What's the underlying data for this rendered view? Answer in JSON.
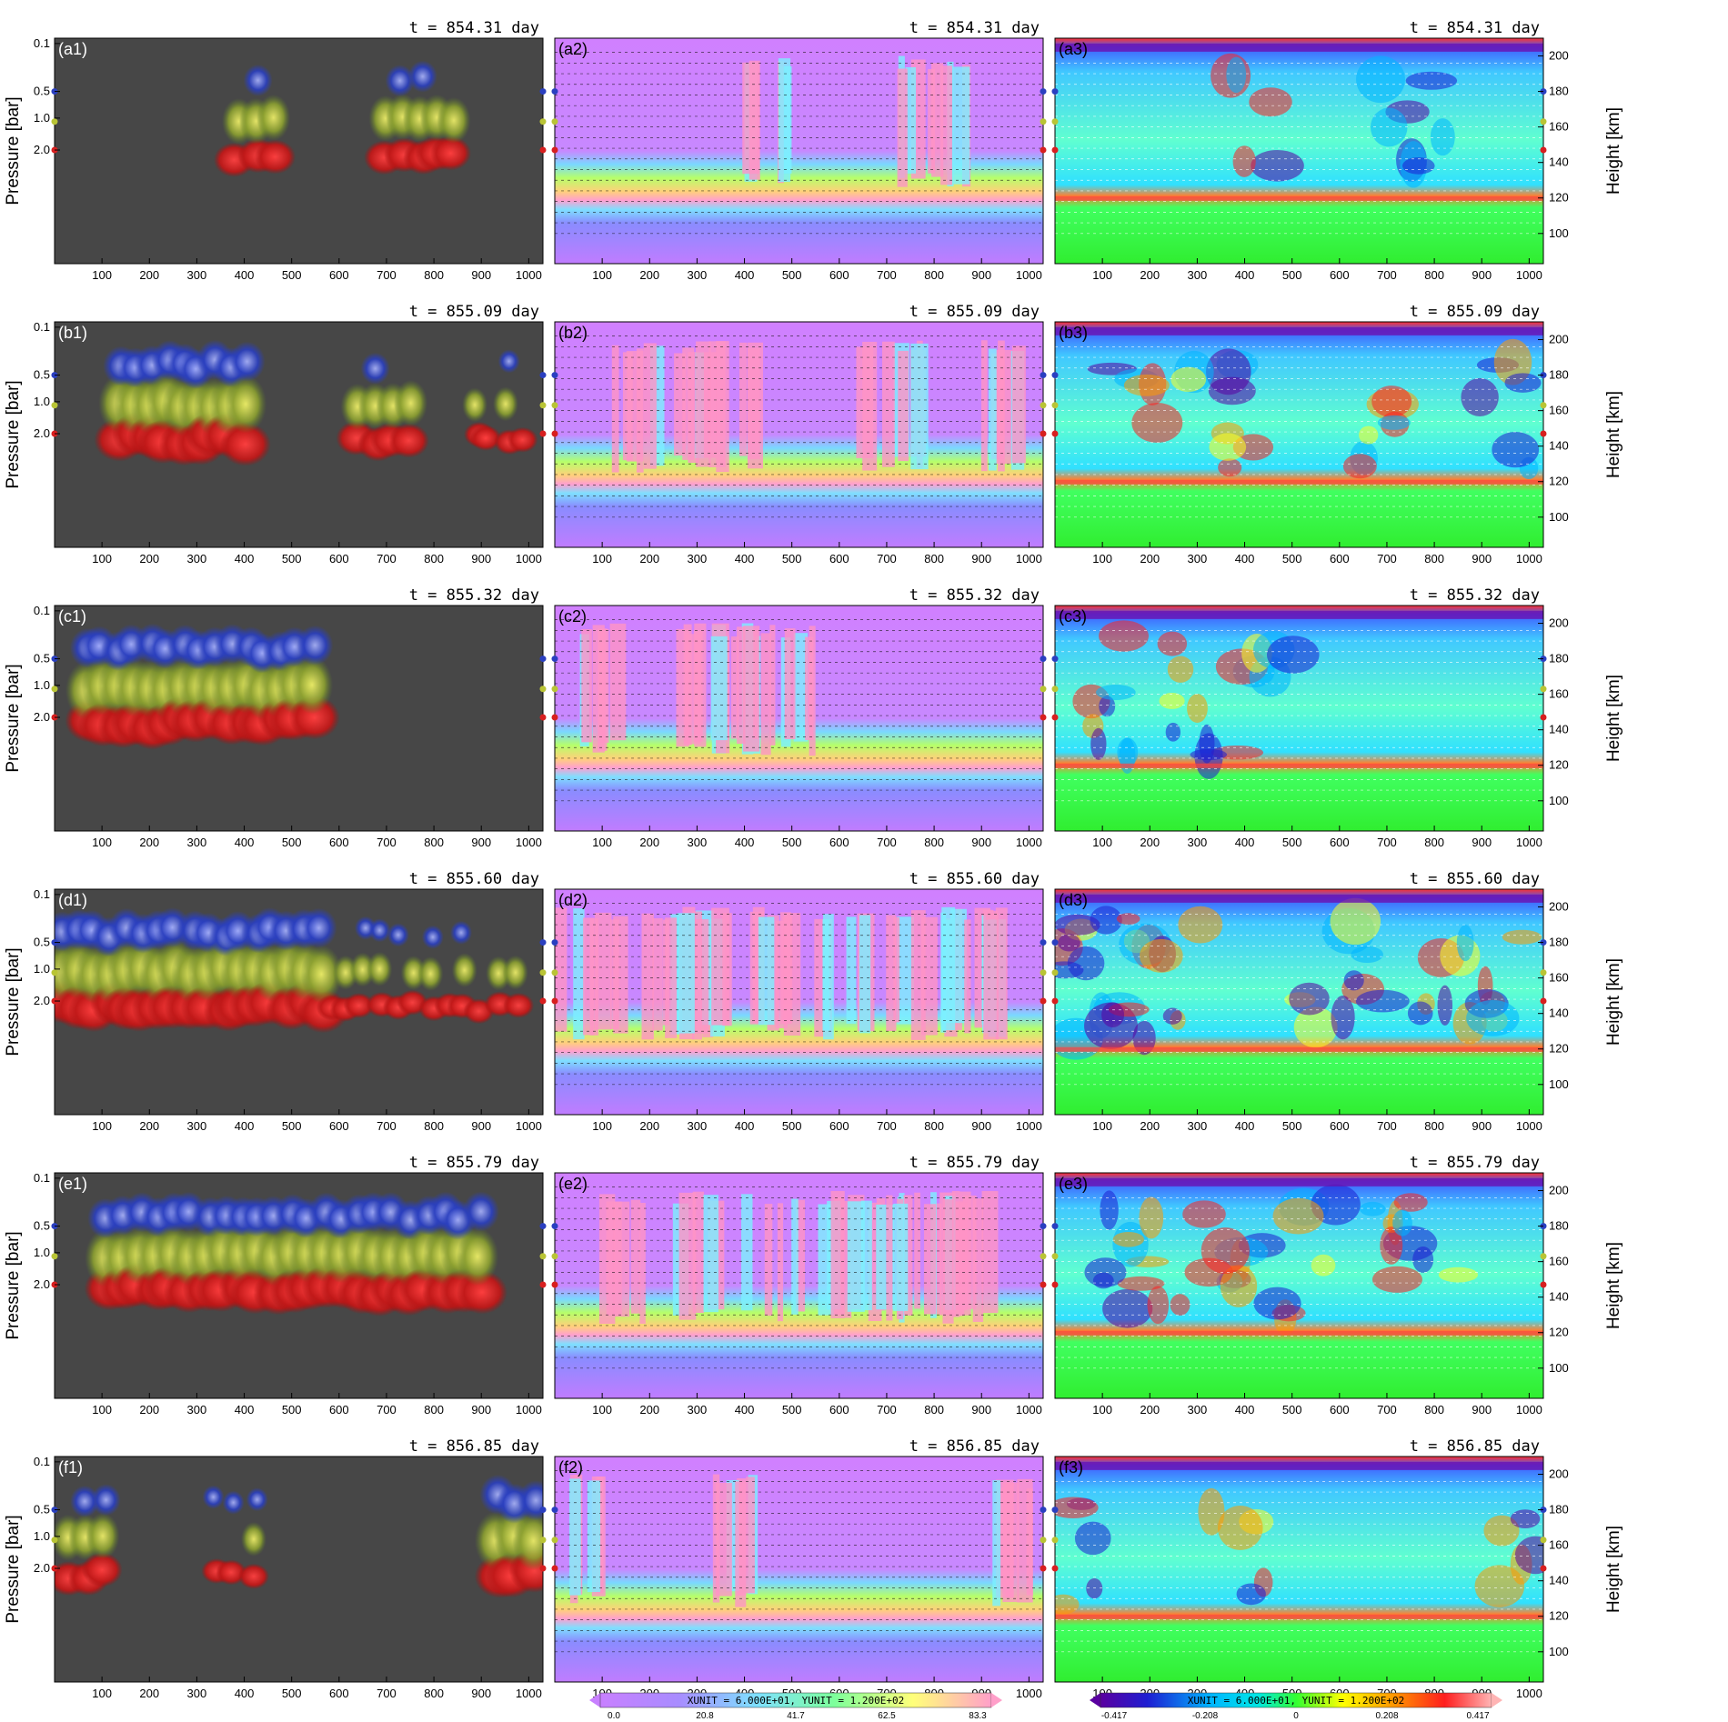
{
  "chart_data": {
    "type": "heatmap",
    "description_rows": "six time snapshots (rows a-f) each with three panels: cloud volume render, colored field with wind vectors, anomaly field with wind vectors",
    "rows": [
      {
        "id": "a",
        "time": "t = 854.31 day",
        "labels": [
          "(a1)",
          "(a2)",
          "(a3)"
        ]
      },
      {
        "id": "b",
        "time": "t = 855.09 day",
        "labels": [
          "(b1)",
          "(b2)",
          "(b3)"
        ]
      },
      {
        "id": "c",
        "time": "t = 855.32 day",
        "labels": [
          "(c1)",
          "(c2)",
          "(c3)"
        ]
      },
      {
        "id": "d",
        "time": "t = 855.60 day",
        "labels": [
          "(d1)",
          "(d2)",
          "(d3)"
        ]
      },
      {
        "id": "e",
        "time": "t = 855.79 day",
        "labels": [
          "(e1)",
          "(e2)",
          "(e3)"
        ]
      },
      {
        "id": "f",
        "time": "t = 856.85 day",
        "labels": [
          "(f1)",
          "(f2)",
          "(f3)"
        ]
      }
    ],
    "x_ticks": [
      "100",
      "200",
      "300",
      "400",
      "500",
      "600",
      "700",
      "800",
      "900",
      "1000"
    ],
    "xlim": [
      0,
      1030
    ],
    "left_axis": {
      "label": "Pressure [bar]",
      "ticks": [
        "0.1",
        "0.5",
        "1.0",
        "2.0"
      ],
      "tick_heights_km": [
        207,
        180,
        165,
        147
      ]
    },
    "right_axis": {
      "label": "Height [km]",
      "ticks": [
        "200",
        "180",
        "160",
        "140",
        "120",
        "100"
      ],
      "ylim": [
        83,
        210
      ]
    },
    "cloud_layers": [
      {
        "name": "upper",
        "color": "#2a3fc0",
        "height_km": 180
      },
      {
        "name": "middle",
        "color": "#b9c435",
        "height_km": 163
      },
      {
        "name": "lower",
        "color": "#d81f1f",
        "height_km": 147
      }
    ],
    "colorbar_left": {
      "ticks": [
        "0.0",
        "20.8",
        "41.7",
        "62.5",
        "83.3"
      ],
      "unit_text": "XUNIT = 6.000E+01, YUNIT = 1.200E+02",
      "colors": [
        "#c880ff",
        "#a88cff",
        "#7ee0ff",
        "#7dff9a",
        "#ffff7a",
        "#ff9fc9"
      ]
    },
    "colorbar_right": {
      "ticks": [
        "-0.417",
        "-0.208",
        "0",
        "0.208",
        "0.417"
      ],
      "unit_text": "XUNIT = 6.000E+01, YUNIT = 1.200E+02",
      "colors": [
        "#5a00a0",
        "#1e1ed2",
        "#00b4ff",
        "#00e6e6",
        "#32ff32",
        "#ffff00",
        "#ff9600",
        "#ff1e1e",
        "#ffb4b4"
      ]
    },
    "cloud_activity": {
      "a": [
        [
          370,
          480,
          "m"
        ],
        [
          680,
          860,
          "m"
        ]
      ],
      "b": [
        [
          120,
          420,
          "s"
        ],
        [
          620,
          770,
          "m"
        ],
        [
          870,
          1000,
          "w"
        ]
      ],
      "c": [
        [
          50,
          560,
          "s"
        ]
      ],
      "d": [
        [
          0,
          580,
          "s"
        ],
        [
          560,
          990,
          "w"
        ]
      ],
      "e": [
        [
          90,
          910,
          "s"
        ]
      ],
      "f": [
        [
          10,
          120,
          "m"
        ],
        [
          320,
          440,
          "w"
        ],
        [
          910,
          1030,
          "s"
        ]
      ]
    }
  }
}
